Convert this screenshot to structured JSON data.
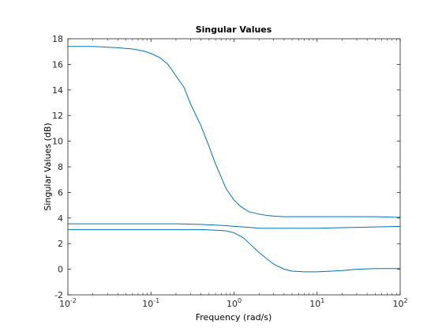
{
  "chart_data": {
    "type": "line",
    "title": "Singular Values",
    "xlabel": "Frequency (rad/s)",
    "ylabel": "Singular Values (dB)",
    "xscale": "log",
    "xlim": [
      0.01,
      100
    ],
    "ylim": [
      -2,
      18
    ],
    "x_ticks": [
      0.01,
      0.1,
      1,
      10,
      100
    ],
    "x_tick_base": "10",
    "x_tick_exponents": [
      "-2",
      "-1",
      "0",
      "1",
      "2"
    ],
    "y_ticks": [
      "-2",
      "0",
      "2",
      "4",
      "6",
      "8",
      "10",
      "12",
      "14",
      "16",
      "18"
    ],
    "grid": false,
    "line_color": "#0072bd",
    "series": [
      {
        "x": [
          0.01,
          0.02,
          0.04,
          0.06,
          0.08,
          0.1,
          0.13,
          0.16,
          0.2,
          0.25,
          0.3,
          0.4,
          0.5,
          0.6,
          0.7,
          0.8,
          1.0,
          1.2,
          1.5,
          2,
          2.5,
          3,
          4,
          5,
          7,
          10,
          20,
          50,
          100
        ],
        "y": [
          17.4,
          17.4,
          17.3,
          17.2,
          17.05,
          16.85,
          16.5,
          16.0,
          15.1,
          14.2,
          12.9,
          11.2,
          9.6,
          8.2,
          7.2,
          6.3,
          5.4,
          4.9,
          4.5,
          4.3,
          4.2,
          4.15,
          4.1,
          4.1,
          4.1,
          4.1,
          4.1,
          4.1,
          4.05
        ]
      },
      {
        "x": [
          0.01,
          0.05,
          0.1,
          0.2,
          0.4,
          0.6,
          0.8,
          1.0,
          1.3,
          1.7,
          2,
          3,
          5,
          10,
          20,
          50,
          100
        ],
        "y": [
          3.55,
          3.55,
          3.55,
          3.55,
          3.5,
          3.45,
          3.4,
          3.35,
          3.3,
          3.25,
          3.2,
          3.2,
          3.2,
          3.2,
          3.25,
          3.3,
          3.35
        ]
      },
      {
        "x": [
          0.01,
          0.05,
          0.1,
          0.2,
          0.4,
          0.6,
          0.8,
          1.0,
          1.3,
          1.6,
          2,
          2.5,
          3,
          4,
          5,
          7,
          10,
          15,
          20,
          30,
          50,
          100
        ],
        "y": [
          3.1,
          3.1,
          3.1,
          3.1,
          3.1,
          3.05,
          3.0,
          2.85,
          2.45,
          1.9,
          1.3,
          0.8,
          0.4,
          0.0,
          -0.15,
          -0.2,
          -0.2,
          -0.15,
          -0.1,
          0.0,
          0.05,
          0.05
        ]
      }
    ]
  }
}
